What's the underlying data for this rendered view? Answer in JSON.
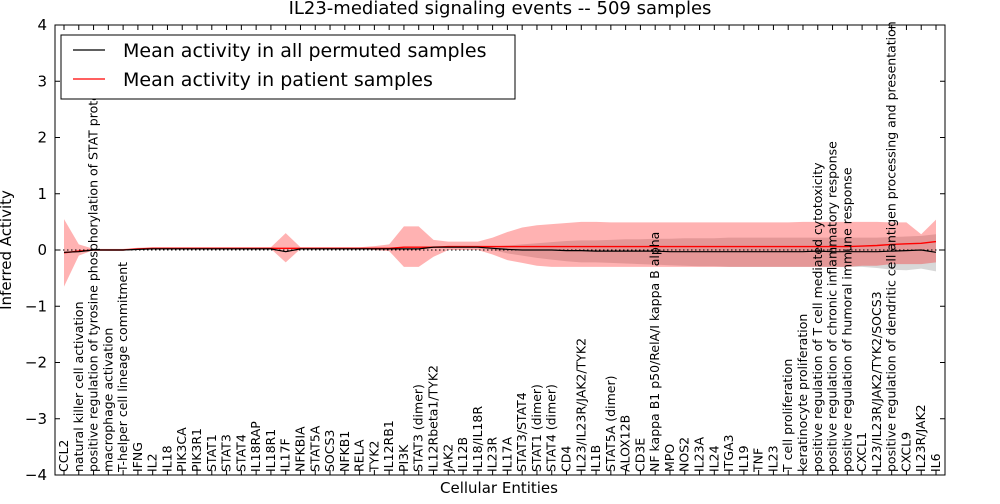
{
  "chart_data": {
    "type": "line",
    "title": "IL23-mediated signaling events -- 509 samples",
    "xlabel": "Cellular Entities",
    "ylabel": "Inferred Activity",
    "ylim": [
      -4,
      4
    ],
    "yticks": [
      -4,
      -3,
      -2,
      -1,
      0,
      1,
      2,
      3,
      4
    ],
    "ytick_labels": [
      "−4",
      "−3",
      "−2",
      "−1",
      "0",
      "1",
      "2",
      "3",
      "4"
    ],
    "grid": false,
    "legend_position": "top-left",
    "legend": [
      {
        "name": "Mean activity in all permuted samples",
        "color": "#000000"
      },
      {
        "name": "Mean activity in patient samples",
        "color": "#ff0000"
      }
    ],
    "categories": [
      "CCL2",
      "natural killer cell activation",
      "positive regulation of tyrosine phosphorylation of STAT protein",
      "macrophage activation",
      "T-helper cell lineage commitment",
      "IFNG",
      "IL2",
      "IL18",
      "PIK3CA",
      "PIK3R1",
      "STAT1",
      "STAT3",
      "STAT4",
      "IL18RAP",
      "IL18R1",
      "IL17F",
      "NFKBIA",
      "STAT5A",
      "SOCS3",
      "NFKB1",
      "RELA",
      "TYK2",
      "IL12RB1",
      "PI3K",
      "STAT3 (dimer)",
      "IL12Rbeta1/TYK2",
      "JAK2",
      "IL12B",
      "IL18/IL18R",
      "IL23R",
      "IL17A",
      "STAT3/STAT4",
      "STAT1 (dimer)",
      "STAT4 (dimer)",
      "CD4",
      "IL23/IL23R/JAK2/TYK2",
      "IL1B",
      "STAT5A (dimer)",
      "ALOX12B",
      "CD3E",
      "NF kappa B1 p50/RelA/I kappa B alpha",
      "MPO",
      "NOS2",
      "IL23A",
      "IL24",
      "ITGA3",
      "IL19",
      "TNF",
      "IL23",
      "T cell proliferation",
      "keratinocyte proliferation",
      "positive regulation of T cell mediated cytotoxicity",
      "positive regulation of chronic inflammatory response",
      "positive regulation of humoral immune response",
      "CXCL1",
      "IL23/IL23R/JAK2/TYK2/SOCS3",
      "positive regulation of dendritic cell antigen processing and presentation",
      "CXCL9",
      "IL23R/JAK2",
      "IL6"
    ],
    "series": [
      {
        "name": "Mean activity in all permuted samples",
        "color": "#000000",
        "values": [
          -0.04,
          -0.03,
          0.0,
          0.0,
          0.0,
          0.01,
          0.02,
          0.02,
          0.02,
          0.02,
          0.02,
          0.02,
          0.02,
          0.02,
          0.02,
          -0.03,
          0.02,
          0.02,
          0.02,
          0.02,
          0.02,
          0.02,
          0.02,
          0.02,
          0.02,
          0.05,
          0.05,
          0.05,
          0.05,
          0.03,
          0.01,
          0.0,
          0.0,
          0.0,
          -0.01,
          -0.01,
          -0.02,
          -0.02,
          -0.02,
          -0.02,
          -0.02,
          -0.03,
          -0.03,
          -0.03,
          -0.03,
          -0.03,
          -0.03,
          -0.03,
          -0.03,
          -0.03,
          -0.03,
          -0.02,
          -0.03,
          -0.03,
          -0.03,
          -0.03,
          -0.02,
          -0.01,
          0.0,
          -0.04
        ],
        "lower": [
          -0.05,
          -0.04,
          -0.01,
          -0.01,
          -0.01,
          0.0,
          0.01,
          0.01,
          0.01,
          0.01,
          0.01,
          0.01,
          0.01,
          0.01,
          0.01,
          -0.04,
          0.01,
          0.01,
          0.01,
          0.01,
          0.01,
          0.01,
          0.01,
          0.01,
          0.01,
          0.03,
          0.03,
          0.03,
          0.03,
          0.0,
          -0.06,
          -0.1,
          -0.14,
          -0.17,
          -0.2,
          -0.22,
          -0.22,
          -0.23,
          -0.24,
          -0.25,
          -0.26,
          -0.27,
          -0.28,
          -0.29,
          -0.29,
          -0.3,
          -0.3,
          -0.3,
          -0.3,
          -0.3,
          -0.3,
          -0.3,
          -0.3,
          -0.3,
          -0.3,
          -0.32,
          -0.35,
          -0.36,
          -0.33,
          -0.38
        ],
        "upper": [
          -0.03,
          -0.02,
          0.01,
          0.01,
          0.01,
          0.02,
          0.03,
          0.03,
          0.03,
          0.03,
          0.03,
          0.03,
          0.03,
          0.03,
          0.03,
          -0.02,
          0.03,
          0.03,
          0.03,
          0.03,
          0.03,
          0.03,
          0.03,
          0.03,
          0.03,
          0.07,
          0.07,
          0.07,
          0.07,
          0.06,
          0.08,
          0.1,
          0.12,
          0.14,
          0.16,
          0.17,
          0.17,
          0.18,
          0.19,
          0.19,
          0.2,
          0.2,
          0.21,
          0.21,
          0.21,
          0.22,
          0.22,
          0.22,
          0.22,
          0.22,
          0.22,
          0.22,
          0.22,
          0.22,
          0.22,
          0.22,
          0.23,
          0.24,
          0.25,
          0.28
        ]
      },
      {
        "name": "Mean activity in patient samples",
        "color": "#ff0000",
        "values": [
          -0.05,
          -0.02,
          0.0,
          0.0,
          0.0,
          0.02,
          0.03,
          0.03,
          0.03,
          0.03,
          0.03,
          0.03,
          0.03,
          0.03,
          0.03,
          0.03,
          0.03,
          0.03,
          0.03,
          0.03,
          0.03,
          0.03,
          0.03,
          0.05,
          0.05,
          0.05,
          0.06,
          0.06,
          0.06,
          0.06,
          0.06,
          0.06,
          0.06,
          0.06,
          0.06,
          0.06,
          0.06,
          0.06,
          0.06,
          0.06,
          0.06,
          0.06,
          0.06,
          0.06,
          0.06,
          0.06,
          0.06,
          0.06,
          0.06,
          0.06,
          0.06,
          0.06,
          0.06,
          0.06,
          0.07,
          0.08,
          0.1,
          0.11,
          0.12,
          0.15
        ],
        "lower": [
          -0.65,
          -0.1,
          0.0,
          -0.01,
          -0.01,
          0.01,
          0.02,
          0.02,
          0.02,
          0.02,
          0.02,
          0.02,
          0.02,
          0.02,
          0.02,
          -0.22,
          0.02,
          0.02,
          0.02,
          0.02,
          0.02,
          0.0,
          -0.02,
          -0.3,
          -0.3,
          -0.12,
          0.0,
          0.0,
          0.0,
          -0.08,
          -0.18,
          -0.23,
          -0.28,
          -0.3,
          -0.3,
          -0.3,
          -0.3,
          -0.3,
          -0.3,
          -0.3,
          -0.3,
          -0.3,
          -0.3,
          -0.3,
          -0.3,
          -0.3,
          -0.3,
          -0.3,
          -0.3,
          -0.3,
          -0.3,
          -0.3,
          -0.3,
          -0.3,
          -0.28,
          -0.28,
          -0.25,
          -0.25,
          -0.25,
          -0.22
        ],
        "upper": [
          0.55,
          0.1,
          0.02,
          0.02,
          0.02,
          0.04,
          0.05,
          0.05,
          0.05,
          0.05,
          0.05,
          0.05,
          0.05,
          0.05,
          0.05,
          0.3,
          0.05,
          0.05,
          0.05,
          0.05,
          0.05,
          0.07,
          0.1,
          0.42,
          0.42,
          0.18,
          0.15,
          0.15,
          0.15,
          0.22,
          0.32,
          0.4,
          0.44,
          0.46,
          0.48,
          0.5,
          0.5,
          0.49,
          0.49,
          0.49,
          0.49,
          0.49,
          0.49,
          0.49,
          0.49,
          0.49,
          0.49,
          0.49,
          0.49,
          0.49,
          0.5,
          0.5,
          0.5,
          0.5,
          0.5,
          0.5,
          0.49,
          0.49,
          0.28,
          0.54
        ]
      }
    ]
  }
}
